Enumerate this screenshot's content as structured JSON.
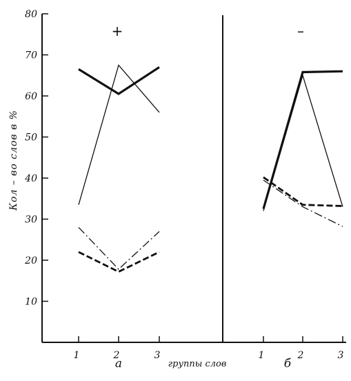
{
  "chart_data": {
    "type": "line",
    "ylabel": "Кол – во слов в %",
    "xlabel": "группы слов",
    "ylim": [
      0,
      80
    ],
    "yticks": [
      "10",
      "20",
      "30",
      "40",
      "50",
      "60",
      "70",
      "80"
    ],
    "x": [
      "1",
      "2",
      "3"
    ],
    "panels": [
      {
        "label": "а",
        "sign": "+",
        "series": [
          {
            "style": "thick-solid",
            "values": [
              66.5,
              60.5,
              67
            ]
          },
          {
            "style": "thin-solid",
            "values": [
              33.5,
              67.5,
              56
            ]
          },
          {
            "style": "dash-dot",
            "values": [
              28,
              17.8,
              27
            ]
          },
          {
            "style": "dashed",
            "values": [
              22,
              17.2,
              22
            ]
          }
        ]
      },
      {
        "label": "б",
        "sign": "–",
        "series": [
          {
            "style": "thick-solid",
            "values": [
              32.5,
              65.8,
              66
            ]
          },
          {
            "style": "thin-solid",
            "values": [
              32,
              65,
              33
            ]
          },
          {
            "style": "dashed",
            "values": [
              40.2,
              33.5,
              33.2
            ]
          },
          {
            "style": "dash-dot",
            "values": [
              39.5,
              33,
              28.2
            ]
          }
        ]
      }
    ]
  }
}
